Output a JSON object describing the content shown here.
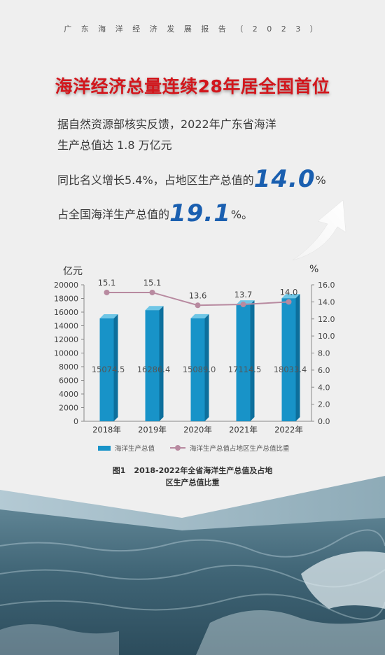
{
  "header": "广 东 海 洋 经 济 发 展 报 告 （ 2 0 2 3 ）",
  "headline": "海洋经济总量连续28年居全国首位",
  "paragraphs": {
    "line1": "据自然资源部核实反馈，2022年广东省海洋",
    "line2": "生产总值达 1.8 万亿元",
    "line3_prefix": "同比名义增长5.4%，占地区生产总值的",
    "line3_big": "14.0",
    "line3_suffix": "%",
    "line4_prefix": "占全国海洋生产总值的",
    "line4_big": "19.1",
    "line4_suffix": "%。"
  },
  "chart_data": {
    "type": "bar",
    "categories": [
      "2018年",
      "2019年",
      "2020年",
      "2021年",
      "2022年"
    ],
    "series": [
      {
        "name": "海洋生产总值",
        "type": "bar",
        "axis": "left",
        "values": [
          15074.5,
          16286.4,
          15089.0,
          17114.5,
          18033.4
        ],
        "labels": [
          "15074.5",
          "16286.4",
          "15089.0",
          "17114.5",
          "18033.4"
        ]
      },
      {
        "name": "海洋生产总值占地区生产总值比重",
        "type": "line",
        "axis": "right",
        "values": [
          15.1,
          15.1,
          13.6,
          13.7,
          14.0
        ],
        "labels": [
          "15.1",
          "15.1",
          "13.6",
          "13.7",
          "14.0"
        ]
      }
    ],
    "ylabel": "亿元",
    "y2label": "%",
    "ylim": [
      0,
      20000
    ],
    "y2lim": [
      0,
      16.0
    ],
    "yticks": [
      "20000",
      "18000",
      "16000",
      "14000",
      "12000",
      "10000",
      "8000",
      "6000",
      "4000",
      "2000",
      "0"
    ],
    "y2ticks": [
      "16.0",
      "14.0",
      "12.0",
      "10.0",
      "8.0",
      "6.0",
      "4.0",
      "2.0",
      "0.0"
    ],
    "grid": false,
    "legend": "bottom",
    "colors": {
      "bar": "#1893c8",
      "line": "#b88aa0"
    }
  },
  "caption": {
    "number": "图1",
    "line1": "2018-2022年全省海洋生产总值及占地",
    "line2": "区生产总值比重"
  }
}
